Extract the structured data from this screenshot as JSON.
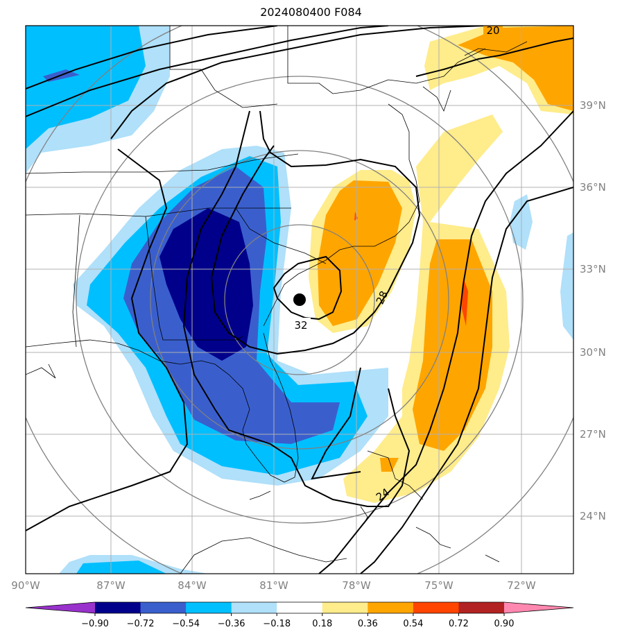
{
  "title": "2024080400 F084",
  "longitude_labels": [
    "90°W",
    "87°W",
    "84°W",
    "81°W",
    "78°W",
    "75°W",
    "72°W"
  ],
  "latitude_labels": [
    "39°N",
    "36°N",
    "33°N",
    "30°N",
    "27°N",
    "24°N"
  ],
  "contour_labels": [
    "20",
    "28",
    "32",
    "24"
  ],
  "colorbar": {
    "tick_labels": [
      "−0.90",
      "−0.72",
      "−0.54",
      "−0.36",
      "−0.18",
      "0.18",
      "0.36",
      "0.54",
      "0.72",
      "0.90"
    ],
    "colors": [
      "#9932cc",
      "#00008b",
      "#3a5fcd",
      "#00bfff",
      "#b0e0fa",
      "#ffffff",
      "#ffec8b",
      "#ffa500",
      "#ff4500",
      "#b22222",
      "#ff88b0"
    ]
  },
  "palette": {
    "neg_strong": "#00008b",
    "neg_medium": "#3a5fcd",
    "neg_mid": "#00bfff",
    "neg_light": "#b0e0fa",
    "pos_light": "#ffec8b",
    "pos_mid": "#ffa500",
    "pos_strong": "#ff4500",
    "gridline": "#b0b0b0",
    "range_ring": "#808080"
  },
  "center_marker": "storm-center-dot"
}
